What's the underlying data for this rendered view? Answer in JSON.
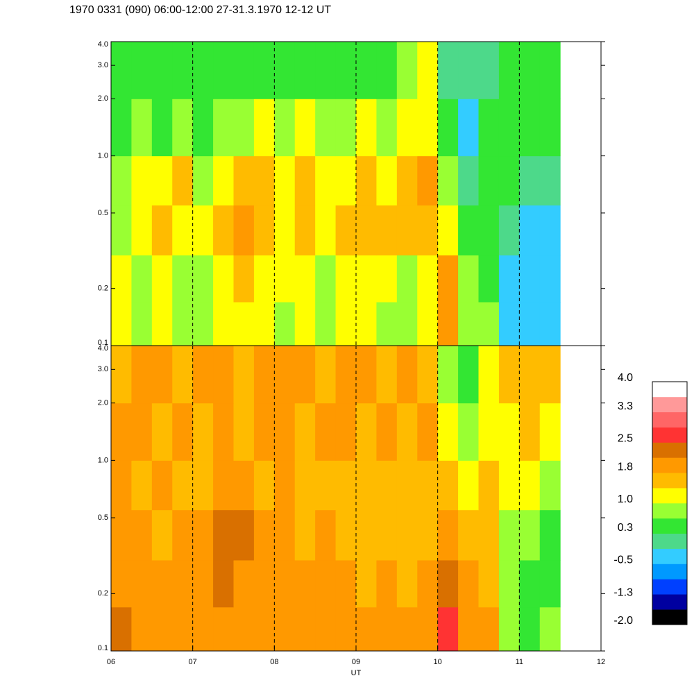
{
  "title": "1970 0331 (090) 06:00-12:00 27-31.3.1970  12-12 UT",
  "chart_data": [
    {
      "type": "heatmap",
      "xlim": [
        6,
        12
      ],
      "x_edges": [
        6,
        6.25,
        6.5,
        6.75,
        7,
        7.25,
        7.5,
        7.75,
        8,
        8.25,
        8.5,
        8.75,
        9,
        9.25,
        9.5,
        9.75,
        10,
        10.25,
        10.5,
        10.75,
        11,
        11.25,
        11.5
      ],
      "y_edges": [
        0.1,
        0.17,
        0.3,
        0.55,
        1.0,
        2.0,
        4.0
      ],
      "ylim": [
        0.1,
        4.0
      ],
      "log_y": true,
      "yticks": [
        0.1,
        0.2,
        0.5,
        {
          "value": 1,
          "label": "1.0"
        },
        {
          "value": 2,
          "label": "2.0"
        },
        {
          "value": 3,
          "label": "3.0"
        },
        {
          "value": 4,
          "label": "4.0"
        }
      ],
      "z": [
        [
          1.1,
          0.9,
          1.2,
          0.8,
          0.7,
          1.0,
          1.3,
          1.1,
          0.9,
          1.2,
          0.8,
          1.0,
          1.2,
          0.9,
          0.8,
          1.0,
          1.9,
          0.9,
          0.7,
          -0.3,
          -0.3,
          -0.2
        ],
        [
          1.0,
          0.8,
          1.1,
          0.9,
          0.8,
          1.2,
          1.4,
          1.2,
          1.0,
          1.3,
          0.9,
          1.1,
          1.3,
          1.0,
          0.9,
          1.1,
          1.8,
          0.8,
          0.6,
          -0.3,
          -0.2,
          -0.3
        ],
        [
          0.8,
          1.1,
          1.5,
          1.3,
          1.0,
          1.6,
          1.8,
          1.6,
          1.3,
          1.7,
          1.2,
          1.5,
          1.6,
          1.4,
          1.6,
          1.7,
          1.2,
          0.5,
          0.6,
          0.0,
          -0.2,
          -0.3
        ],
        [
          0.7,
          1.2,
          1.0,
          1.4,
          0.9,
          1.3,
          1.6,
          1.5,
          1.1,
          1.6,
          1.0,
          1.3,
          1.5,
          1.2,
          1.7,
          1.9,
          0.9,
          0.2,
          0.5,
          0.3,
          0.1,
          0.0
        ],
        [
          0.6,
          0.7,
          0.6,
          0.8,
          0.6,
          0.7,
          0.9,
          1.0,
          0.7,
          1.1,
          0.8,
          0.9,
          1.2,
          0.8,
          1.0,
          1.2,
          0.5,
          -0.2,
          0.3,
          0.4,
          0.4,
          0.3
        ],
        [
          0.4,
          0.5,
          0.4,
          0.6,
          0.5,
          0.5,
          0.6,
          0.5,
          0.4,
          0.5,
          0.4,
          0.6,
          0.5,
          0.6,
          0.7,
          1.3,
          0.2,
          -0.1,
          0.2,
          0.3,
          0.3,
          0.4
        ]
      ]
    },
    {
      "type": "heatmap",
      "xlim": [
        6,
        12
      ],
      "xticks": [
        {
          "value": 6,
          "label": "06"
        },
        {
          "value": 7,
          "label": "07"
        },
        {
          "value": 8,
          "label": "08"
        },
        {
          "value": 9,
          "label": "09"
        },
        {
          "value": 10,
          "label": "10"
        },
        {
          "value": 11,
          "label": "11"
        },
        {
          "value": 12,
          "label": "12"
        }
      ],
      "xlabel": "UT",
      "grid": true,
      "x_edges": [
        6,
        6.25,
        6.5,
        6.75,
        7,
        7.25,
        7.5,
        7.75,
        8,
        8.25,
        8.5,
        8.75,
        9,
        9.25,
        9.5,
        9.75,
        10,
        10.25,
        10.5,
        10.75,
        11,
        11.25,
        11.5
      ],
      "y_edges": [
        0.1,
        0.17,
        0.3,
        0.55,
        1.0,
        2.0,
        4.0
      ],
      "ylim": [
        0.1,
        4.0
      ],
      "log_y": true,
      "yticks": [
        0.1,
        0.2,
        0.5,
        {
          "value": 1,
          "label": "1.0"
        },
        {
          "value": 2,
          "label": "2.0"
        },
        {
          "value": 3,
          "label": "3.0"
        },
        {
          "value": 4,
          "label": "4.0"
        }
      ],
      "z": [
        [
          2.2,
          2.0,
          1.9,
          1.9,
          1.8,
          2.0,
          1.9,
          2.1,
          1.9,
          1.8,
          2.0,
          1.9,
          1.8,
          1.9,
          1.8,
          1.9,
          2.6,
          1.9,
          1.8,
          0.8,
          0.6,
          0.7
        ],
        [
          2.0,
          1.9,
          1.8,
          1.9,
          1.8,
          2.2,
          2.0,
          2.1,
          1.9,
          1.8,
          1.9,
          1.8,
          1.7,
          1.8,
          1.7,
          1.8,
          2.2,
          1.8,
          1.7,
          0.7,
          0.6,
          0.6
        ],
        [
          1.8,
          1.9,
          1.7,
          1.8,
          1.9,
          2.2,
          2.2,
          1.9,
          1.8,
          1.7,
          1.8,
          1.7,
          1.6,
          1.7,
          1.6,
          1.7,
          1.9,
          1.6,
          1.5,
          0.8,
          0.7,
          0.6
        ],
        [
          1.8,
          1.7,
          1.8,
          1.7,
          1.7,
          1.8,
          1.9,
          1.7,
          1.8,
          1.6,
          1.7,
          1.6,
          1.7,
          1.6,
          1.7,
          1.6,
          1.5,
          1.3,
          1.4,
          1.1,
          1.0,
          0.9
        ],
        [
          1.8,
          1.8,
          1.7,
          1.8,
          1.7,
          1.8,
          1.7,
          1.8,
          1.9,
          1.7,
          1.8,
          1.8,
          1.7,
          1.8,
          1.7,
          1.8,
          1.2,
          0.9,
          1.3,
          1.3,
          1.4,
          1.3
        ],
        [
          1.7,
          1.8,
          1.8,
          1.7,
          1.8,
          1.8,
          1.7,
          1.8,
          1.8,
          1.8,
          1.7,
          1.8,
          1.8,
          1.7,
          1.8,
          1.7,
          0.9,
          0.6,
          1.3,
          1.5,
          1.6,
          1.6
        ]
      ]
    }
  ],
  "colorbar": {
    "clim": [
      -2.0,
      4.0
    ],
    "colors": [
      "#000000",
      "#0000a0",
      "#0040ff",
      "#0099ff",
      "#33ccff",
      "#4dd98a",
      "#33e633",
      "#99ff33",
      "#ffff00",
      "#ffbb00",
      "#ff9900",
      "#d97000",
      "#ff3333",
      "#ff6666",
      "#ff9999",
      "#ffffff"
    ],
    "ticks": [
      {
        "value": 4,
        "label": "4.0"
      },
      3.3,
      2.5,
      1.8,
      {
        "value": 1,
        "label": "1.0"
      },
      0.3,
      -0.5,
      -1.3,
      {
        "value": -2,
        "label": "-2.0"
      }
    ]
  }
}
